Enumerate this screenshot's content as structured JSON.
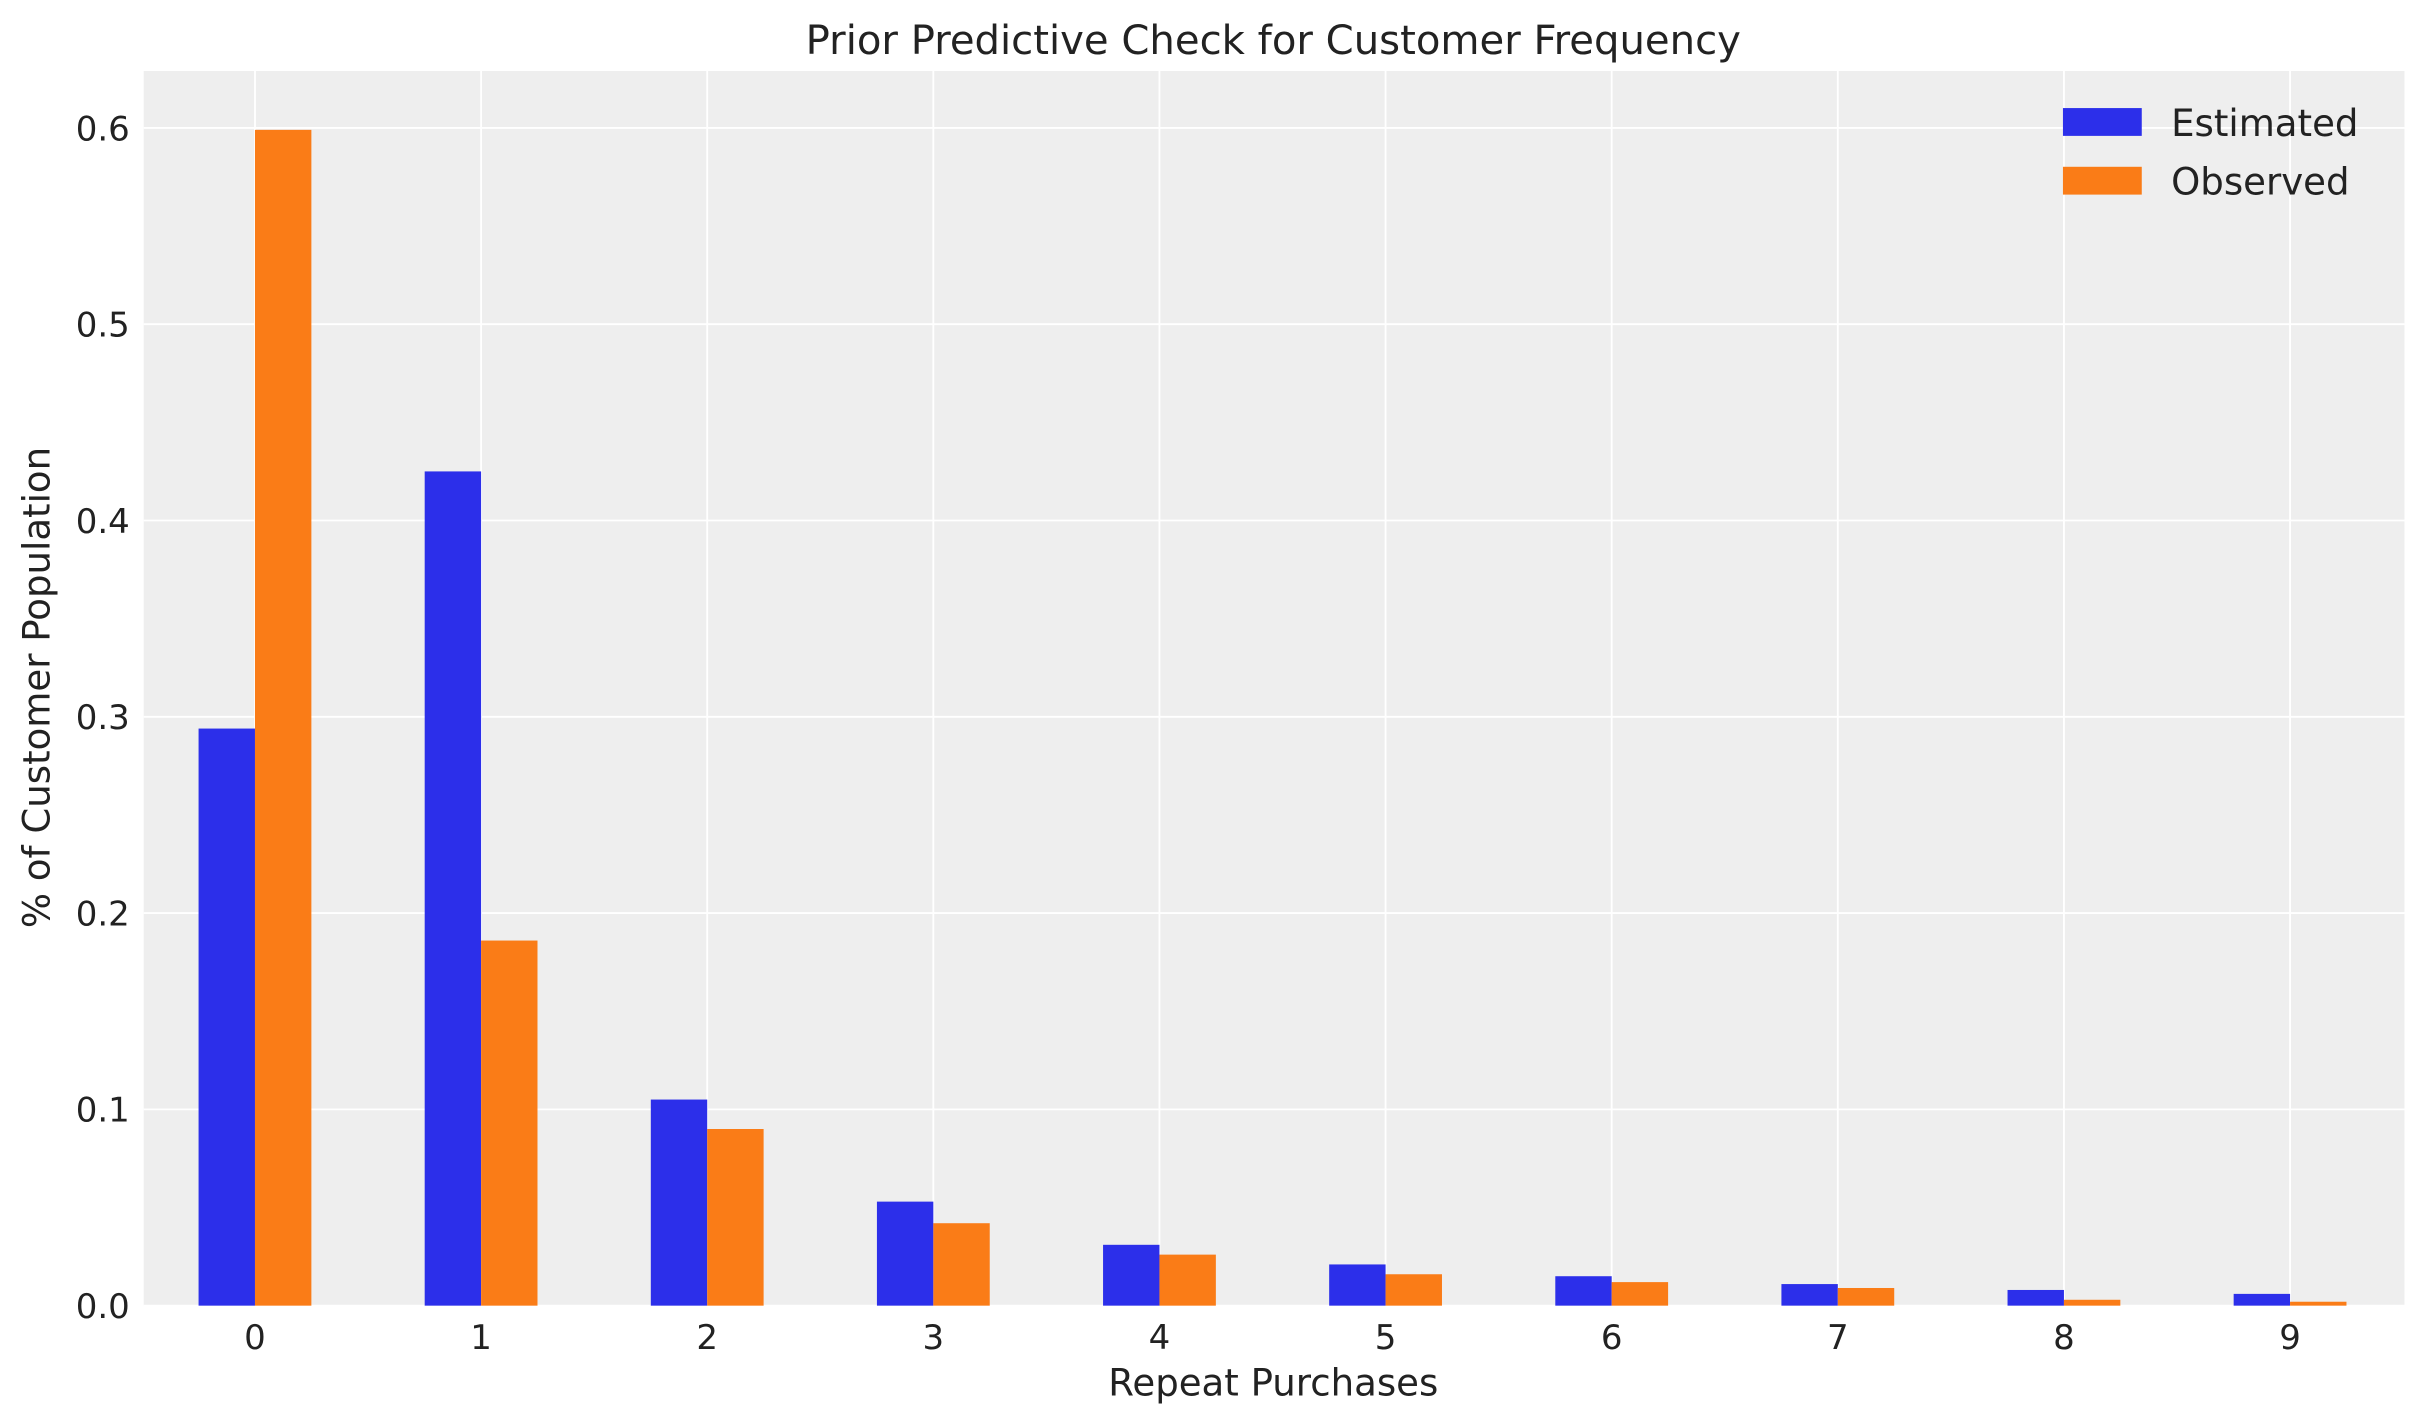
{
  "chart_data": {
    "type": "bar",
    "title": "Prior Predictive Check for Customer Frequency",
    "xlabel": "Repeat Purchases",
    "ylabel": "% of Customer Population",
    "categories": [
      "0",
      "1",
      "2",
      "3",
      "4",
      "5",
      "6",
      "7",
      "8",
      "9"
    ],
    "series": [
      {
        "name": "Estimated",
        "color": "#2c2fea",
        "values": [
          0.294,
          0.425,
          0.105,
          0.053,
          0.031,
          0.021,
          0.015,
          0.011,
          0.008,
          0.006
        ]
      },
      {
        "name": "Observed",
        "color": "#fa7c17",
        "values": [
          0.599,
          0.186,
          0.09,
          0.042,
          0.026,
          0.016,
          0.012,
          0.009,
          0.003,
          0.002
        ]
      }
    ],
    "ylim": [
      0,
      0.629
    ],
    "yticks": [
      "0.0",
      "0.1",
      "0.2",
      "0.3",
      "0.4",
      "0.5",
      "0.6"
    ],
    "grid": true,
    "legend": "top-right",
    "background": "#eeeeee"
  }
}
